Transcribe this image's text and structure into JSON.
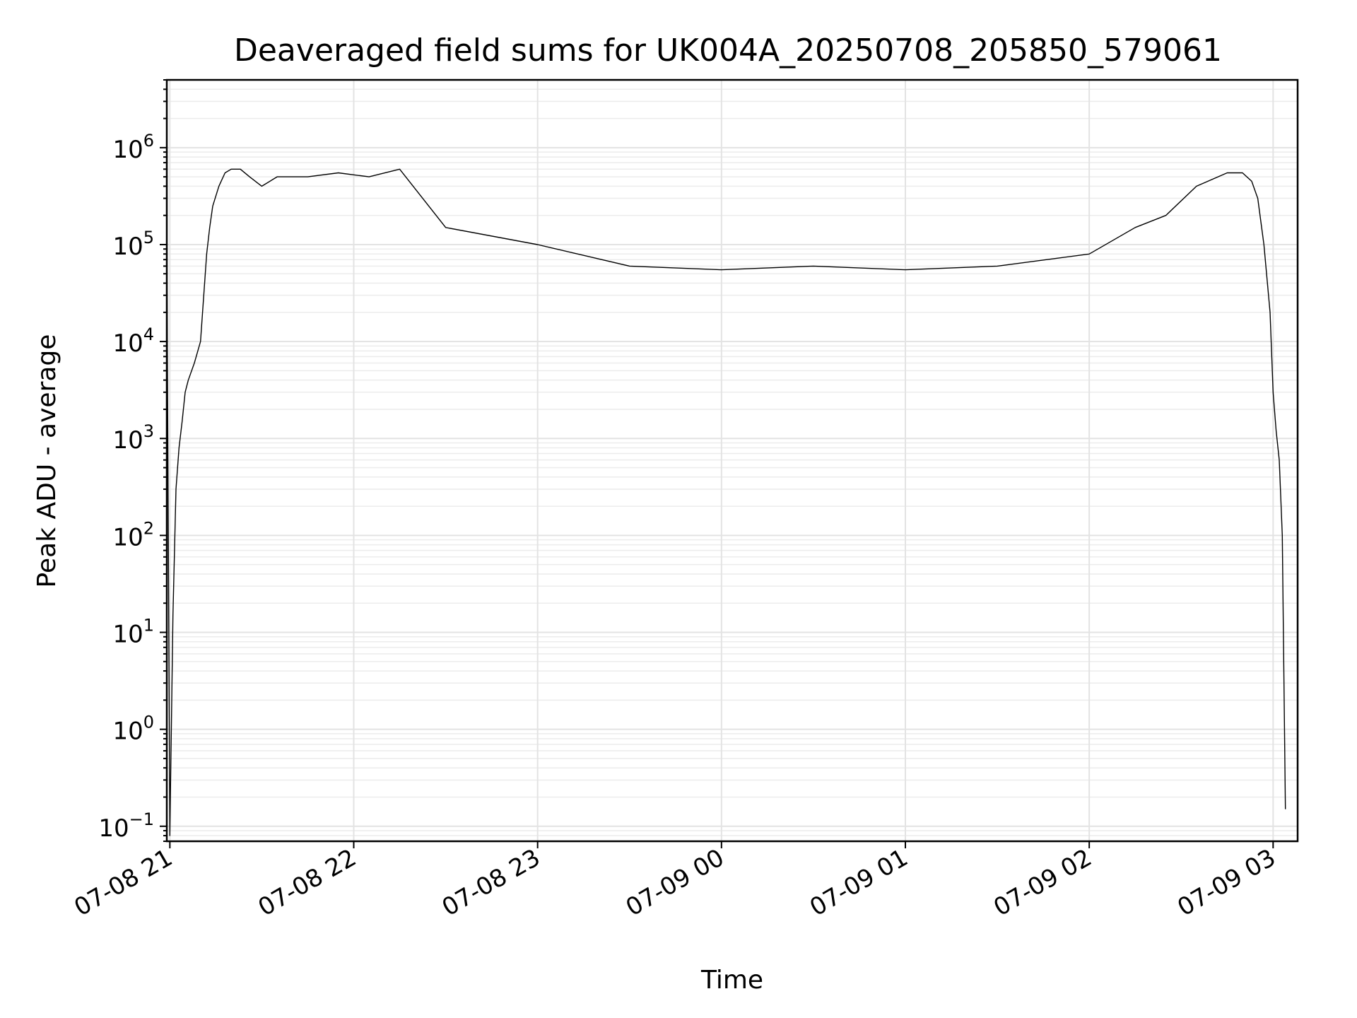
{
  "chart_data": {
    "type": "line",
    "title": "Deaveraged field sums for UK004A_20250708_205850_579061",
    "xlabel": "Time",
    "ylabel": "Peak ADU - average",
    "yscale": "log",
    "grid": true,
    "xlim": [
      "2025-07-08 20:59",
      "2025-07-09 03:08"
    ],
    "ylim": [
      0.07,
      5000000
    ],
    "x_ticks": [
      {
        "value": "2025-07-08 21:00",
        "label": "07-08 21"
      },
      {
        "value": "2025-07-08 22:00",
        "label": "07-08 22"
      },
      {
        "value": "2025-07-08 23:00",
        "label": "07-08 23"
      },
      {
        "value": "2025-07-09 00:00",
        "label": "07-09 00"
      },
      {
        "value": "2025-07-09 01:00",
        "label": "07-09 01"
      },
      {
        "value": "2025-07-09 02:00",
        "label": "07-09 02"
      },
      {
        "value": "2025-07-09 03:00",
        "label": "07-09 03"
      }
    ],
    "y_ticks": [
      {
        "value": 0.1,
        "base": "10",
        "exp": "−1"
      },
      {
        "value": 1,
        "base": "10",
        "exp": "0"
      },
      {
        "value": 10,
        "base": "10",
        "exp": "1"
      },
      {
        "value": 100,
        "base": "10",
        "exp": "2"
      },
      {
        "value": 1000,
        "base": "10",
        "exp": "3"
      },
      {
        "value": 10000,
        "base": "10",
        "exp": "4"
      },
      {
        "value": 100000,
        "base": "10",
        "exp": "5"
      },
      {
        "value": 1000000,
        "base": "10",
        "exp": "6"
      }
    ],
    "series": [
      {
        "color": "#000000",
        "x": [
          "2025-07-08 20:59",
          "2025-07-08 21:00",
          "2025-07-08 21:01",
          "2025-07-08 21:02",
          "2025-07-08 21:03",
          "2025-07-08 21:04",
          "2025-07-08 21:05",
          "2025-07-08 21:06",
          "2025-07-08 21:08",
          "2025-07-08 21:10",
          "2025-07-08 21:12",
          "2025-07-08 21:13",
          "2025-07-08 21:14",
          "2025-07-08 21:16",
          "2025-07-08 21:18",
          "2025-07-08 21:20",
          "2025-07-08 21:23",
          "2025-07-08 21:26",
          "2025-07-08 21:30",
          "2025-07-08 21:35",
          "2025-07-08 21:45",
          "2025-07-08 21:55",
          "2025-07-08 22:05",
          "2025-07-08 22:15",
          "2025-07-08 22:30",
          "2025-07-08 23:00",
          "2025-07-08 23:30",
          "2025-07-09 00:00",
          "2025-07-09 00:30",
          "2025-07-09 01:00",
          "2025-07-09 01:30",
          "2025-07-09 02:00",
          "2025-07-09 02:15",
          "2025-07-09 02:25",
          "2025-07-09 02:35",
          "2025-07-09 02:45",
          "2025-07-09 02:50",
          "2025-07-09 02:53",
          "2025-07-09 02:55",
          "2025-07-09 02:57",
          "2025-07-09 02:59",
          "2025-07-09 03:00",
          "2025-07-09 03:01",
          "2025-07-09 03:02",
          "2025-07-09 03:03",
          "2025-07-09 03:04"
        ],
        "y": [
          120000,
          0.08,
          15,
          300,
          800,
          1500,
          3000,
          4000,
          6000,
          10000,
          80000,
          150000,
          250000,
          400000,
          550000,
          600000,
          600000,
          500000,
          400000,
          500000,
          500000,
          550000,
          500000,
          600000,
          150000,
          100000,
          60000,
          55000,
          60000,
          55000,
          60000,
          80000,
          150000,
          200000,
          400000,
          550000,
          550000,
          450000,
          300000,
          100000,
          20000,
          3000,
          1200,
          600,
          100,
          0.15
        ]
      }
    ]
  }
}
